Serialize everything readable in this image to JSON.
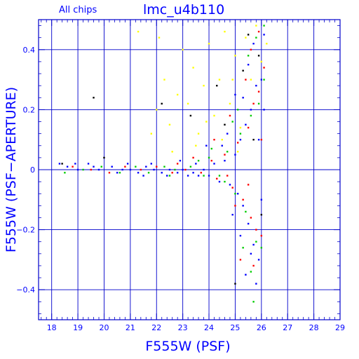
{
  "chart_data": {
    "type": "scatter",
    "title": "lmc_u4b110",
    "subtitle": "All chips",
    "xlabel": "F555W (PSF)",
    "ylabel": "F555W (PSF−APERTURE)",
    "xlim": [
      17.5,
      29
    ],
    "ylim": [
      -0.5,
      0.5
    ],
    "x_major_ticks": [
      18,
      19,
      20,
      21,
      22,
      23,
      24,
      25,
      26,
      27,
      28,
      29
    ],
    "y_major_ticks": [
      -0.4,
      -0.2,
      0,
      0.2,
      0.4
    ],
    "x_tick_labels": [
      "18",
      "19",
      "20",
      "21",
      "22",
      "23",
      "24",
      "25",
      "26",
      "27",
      "28",
      "29"
    ],
    "y_tick_labels": [
      "−0.4",
      "−0.2",
      "0",
      "0.2",
      "0.4"
    ],
    "grid": true,
    "colors": {
      "axes": "#0000cc",
      "text": "#0000ff",
      "chip1": "#0000ff",
      "chip2": "#ff0000",
      "chip3": "#00cc00",
      "chip4": "#ffff00",
      "outlier": "#000000"
    },
    "series": [
      {
        "color": "#0000ff",
        "points": [
          [
            18.3,
            0.02
          ],
          [
            18.6,
            0.01
          ],
          [
            19.0,
            0.0
          ],
          [
            19.4,
            0.02
          ],
          [
            19.8,
            0.0
          ],
          [
            20.3,
            0.01
          ],
          [
            20.7,
            0.0
          ],
          [
            21.0,
            0.0
          ],
          [
            21.3,
            -0.01
          ],
          [
            21.6,
            0.01
          ],
          [
            21.9,
            0.0
          ],
          [
            22.2,
            -0.01
          ],
          [
            22.5,
            0.0
          ],
          [
            22.8,
            -0.01
          ],
          [
            23.0,
            0.0
          ],
          [
            23.2,
            -0.02
          ],
          [
            23.4,
            -0.01
          ],
          [
            23.6,
            -0.02
          ],
          [
            23.8,
            0.0
          ],
          [
            24.0,
            -0.02
          ],
          [
            24.2,
            0.02
          ],
          [
            24.4,
            -0.04
          ],
          [
            24.6,
            0.03
          ],
          [
            24.8,
            -0.05
          ],
          [
            25.0,
            0.05
          ],
          [
            25.1,
            -0.08
          ],
          [
            25.2,
            0.1
          ],
          [
            25.3,
            -0.12
          ],
          [
            25.4,
            0.15
          ],
          [
            25.5,
            -0.18
          ],
          [
            25.6,
            0.2
          ],
          [
            25.7,
            -0.25
          ],
          [
            25.8,
            0.28
          ],
          [
            25.9,
            -0.3
          ],
          [
            26.0,
            0.3
          ],
          [
            26.0,
            -0.1
          ],
          [
            25.9,
            0.1
          ],
          [
            25.6,
            -0.28
          ],
          [
            25.3,
            0.24
          ],
          [
            25.7,
            0.42
          ],
          [
            26.1,
            0.45
          ],
          [
            25.4,
            -0.35
          ],
          [
            25.5,
            0.35
          ],
          [
            24.9,
            -0.15
          ],
          [
            24.7,
            0.12
          ],
          [
            23.9,
            0.08
          ],
          [
            23.5,
            0.02
          ],
          [
            22.9,
            0.03
          ],
          [
            22.4,
            -0.02
          ],
          [
            21.8,
            0.02
          ],
          [
            21.5,
            -0.02
          ],
          [
            20.9,
            0.02
          ],
          [
            20.5,
            -0.01
          ],
          [
            19.6,
            0.01
          ],
          [
            18.9,
            0.02
          ],
          [
            25.2,
            -0.22
          ],
          [
            25.8,
            -0.38
          ],
          [
            26.1,
            0.2
          ],
          [
            25.0,
            0.25
          ],
          [
            24.5,
            0.08
          ]
        ]
      },
      {
        "color": "#ff0000",
        "points": [
          [
            18.8,
            0.01
          ],
          [
            19.5,
            0.0
          ],
          [
            20.2,
            -0.01
          ],
          [
            20.8,
            0.01
          ],
          [
            21.4,
            0.0
          ],
          [
            22.0,
            0.01
          ],
          [
            22.6,
            -0.01
          ],
          [
            23.1,
            0.0
          ],
          [
            23.7,
            -0.01
          ],
          [
            24.1,
            0.03
          ],
          [
            24.3,
            -0.03
          ],
          [
            24.6,
            0.05
          ],
          [
            24.9,
            -0.06
          ],
          [
            25.1,
            0.09
          ],
          [
            25.3,
            -0.1
          ],
          [
            25.5,
            0.14
          ],
          [
            25.6,
            -0.16
          ],
          [
            25.7,
            0.22
          ],
          [
            25.8,
            -0.2
          ],
          [
            25.9,
            0.26
          ],
          [
            26.0,
            -0.22
          ],
          [
            26.1,
            0.34
          ],
          [
            25.4,
            0.3
          ],
          [
            25.6,
            0.4
          ],
          [
            25.9,
            0.46
          ],
          [
            25.2,
            -0.3
          ],
          [
            25.7,
            -0.32
          ],
          [
            24.8,
            0.18
          ],
          [
            24.2,
            0.1
          ],
          [
            23.4,
            0.04
          ],
          [
            22.8,
            0.02
          ],
          [
            25.0,
            -0.12
          ],
          [
            26.0,
            0.1
          ],
          [
            25.5,
            -0.05
          ],
          [
            24.7,
            -0.02
          ]
        ]
      },
      {
        "color": "#00cc00",
        "points": [
          [
            18.5,
            -0.01
          ],
          [
            19.2,
            0.0
          ],
          [
            19.9,
            0.01
          ],
          [
            20.6,
            -0.01
          ],
          [
            21.2,
            0.01
          ],
          [
            21.7,
            -0.01
          ],
          [
            22.3,
            0.01
          ],
          [
            22.7,
            0.0
          ],
          [
            23.3,
            0.01
          ],
          [
            23.8,
            -0.02
          ],
          [
            24.0,
            0.04
          ],
          [
            24.4,
            -0.02
          ],
          [
            24.7,
            0.06
          ],
          [
            25.0,
            -0.08
          ],
          [
            25.2,
            0.12
          ],
          [
            25.4,
            -0.14
          ],
          [
            25.6,
            0.18
          ],
          [
            25.8,
            -0.24
          ],
          [
            25.9,
            0.22
          ],
          [
            26.0,
            -0.26
          ],
          [
            26.1,
            0.3
          ],
          [
            25.5,
            0.38
          ],
          [
            25.8,
            0.44
          ],
          [
            25.3,
            -0.26
          ],
          [
            25.6,
            -0.34
          ],
          [
            24.9,
            0.16
          ],
          [
            24.1,
            0.07
          ],
          [
            23.6,
            0.03
          ],
          [
            22.5,
            -0.02
          ],
          [
            26.1,
            0.48
          ],
          [
            25.7,
            -0.44
          ],
          [
            24.6,
            -0.04
          ],
          [
            25.1,
            0.2
          ]
        ]
      },
      {
        "color": "#ffff00",
        "points": [
          [
            21.3,
            0.46
          ],
          [
            22.0,
            0.2
          ],
          [
            22.3,
            0.3
          ],
          [
            22.5,
            0.15
          ],
          [
            22.8,
            0.25
          ],
          [
            23.0,
            0.4
          ],
          [
            23.2,
            0.22
          ],
          [
            23.4,
            0.34
          ],
          [
            23.6,
            0.12
          ],
          [
            23.8,
            0.28
          ],
          [
            24.0,
            0.42
          ],
          [
            24.2,
            0.18
          ],
          [
            24.4,
            0.3
          ],
          [
            24.6,
            0.46
          ],
          [
            24.8,
            0.22
          ],
          [
            25.0,
            0.38
          ],
          [
            25.2,
            0.14
          ],
          [
            25.4,
            0.44
          ],
          [
            25.6,
            0.3
          ],
          [
            25.8,
            0.48
          ],
          [
            26.0,
            0.36
          ],
          [
            26.2,
            0.42
          ],
          [
            21.8,
            0.12
          ],
          [
            22.6,
            0.06
          ],
          [
            23.5,
            0.08
          ],
          [
            24.5,
            0.1
          ],
          [
            25.1,
            0.06
          ],
          [
            22.1,
            0.44
          ],
          [
            23.9,
            0.16
          ],
          [
            24.9,
            0.3
          ]
        ]
      },
      {
        "color": "#000000",
        "points": [
          [
            19.6,
            0.24
          ],
          [
            22.2,
            0.22
          ],
          [
            23.3,
            0.18
          ],
          [
            24.3,
            0.28
          ],
          [
            25.0,
            -0.38
          ],
          [
            25.5,
            0.45
          ],
          [
            25.9,
            0.38
          ],
          [
            26.0,
            -0.15
          ],
          [
            24.6,
            0.15
          ],
          [
            25.3,
            0.33
          ],
          [
            18.4,
            0.02
          ],
          [
            20.0,
            0.04
          ],
          [
            25.7,
            0.1
          ]
        ]
      }
    ]
  }
}
